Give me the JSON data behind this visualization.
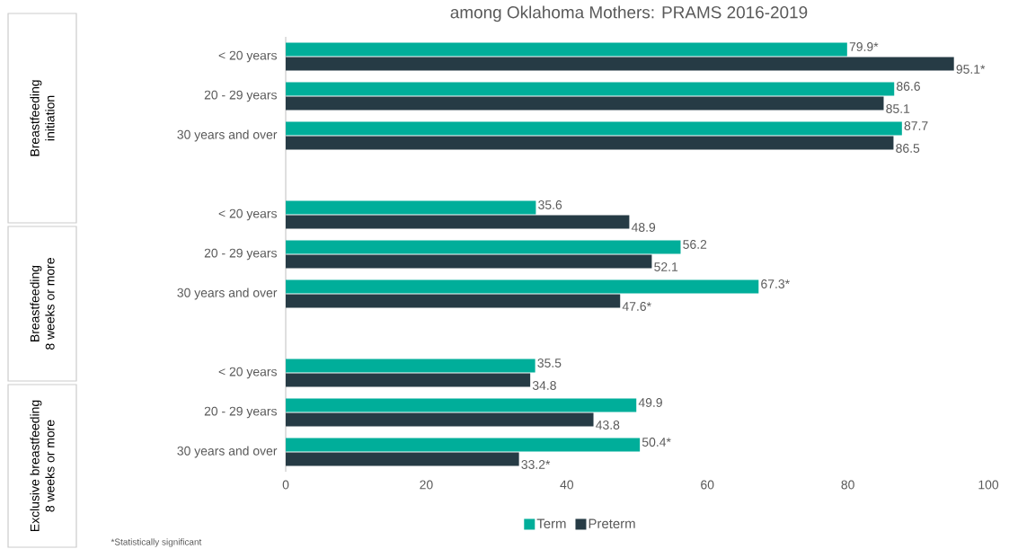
{
  "chart_data": {
    "type": "bar",
    "orientation": "horizontal",
    "title": "among Oklahoma Mothers: PRAMS 2016-2019",
    "categories": [
      "< 20 years",
      "20 - 29 years",
      "30 years and over",
      null,
      "< 20 years",
      "20 - 29 years",
      "30 years and over",
      null,
      "< 20 years",
      "20 - 29 years",
      "30 years and over"
    ],
    "series": [
      {
        "name": "Term",
        "color": "#00ae9a",
        "values": [
          79.9,
          86.6,
          87.7,
          null,
          35.6,
          56.2,
          67.3,
          null,
          35.5,
          49.9,
          50.4
        ],
        "value_labels": [
          "79.9*",
          "86.6",
          "87.7",
          null,
          "35.6",
          "56.2",
          "67.3*",
          null,
          "35.5",
          "49.9",
          "50.4*"
        ]
      },
      {
        "name": "Preterm",
        "color": "#263b45",
        "values": [
          95.1,
          85.1,
          86.5,
          null,
          48.9,
          52.1,
          47.6,
          null,
          34.8,
          43.8,
          33.2
        ],
        "value_labels": [
          "95.1*",
          "85.1",
          "86.5",
          null,
          "48.9",
          "52.1",
          "47.6*",
          null,
          "34.8",
          "43.8",
          "33.2*"
        ]
      }
    ],
    "xlim": [
      0,
      100
    ],
    "xticks": [
      0,
      20,
      40,
      60,
      80,
      100
    ],
    "grid": false,
    "legend": "bottom",
    "annotations": [
      "Breastfeeding\ninitiation",
      "Breastfeeding\n8 weeks or more",
      "Exclusive breastfeeding\n8 weeks or more",
      "*Statistically significant"
    ]
  }
}
